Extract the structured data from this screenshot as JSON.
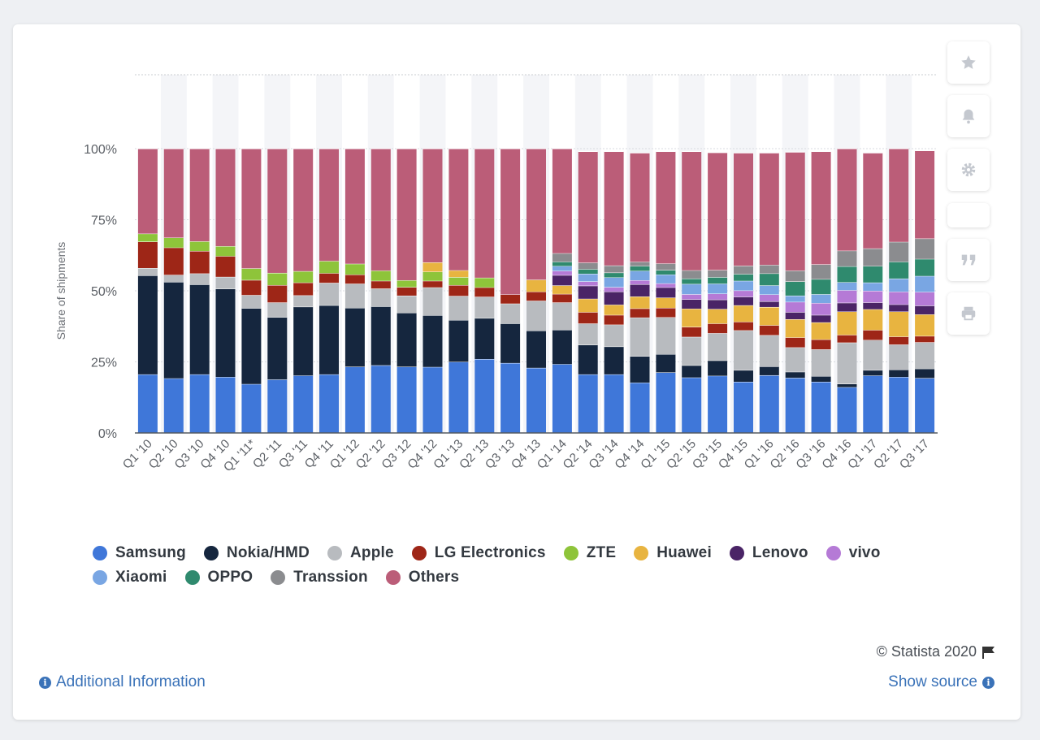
{
  "chart_data": {
    "type": "bar",
    "stacked": true,
    "title": "",
    "xlabel": "",
    "ylabel": "Share of shipments",
    "ylim": [
      0,
      100
    ],
    "yticks": [
      "0%",
      "25%",
      "50%",
      "75%",
      "100%"
    ],
    "grid": true,
    "legend_position": "bottom",
    "categories": [
      "Q1 '10",
      "Q2 '10",
      "Q3 '10",
      "Q4 '10",
      "Q1 '11*",
      "Q2 '11",
      "Q3 '11",
      "Q4 '11",
      "Q1 '12",
      "Q2 '12",
      "Q3 '12",
      "Q4 '12",
      "Q1 '13",
      "Q2 '13",
      "Q3 '13",
      "Q4 '13",
      "Q1 '14",
      "Q2 '14",
      "Q3 '14",
      "Q4 '14",
      "Q1 '15",
      "Q2 '15",
      "Q3 '15",
      "Q4 '15",
      "Q1 '16",
      "Q2 '16",
      "Q3 '16",
      "Q4 '16",
      "Q1 '17",
      "Q2 '17",
      "Q3 '17"
    ],
    "series": [
      {
        "name": "Samsung",
        "color": "#3f77d9",
        "values": [
          20.6,
          19.2,
          20.6,
          19.7,
          17.2,
          18.8,
          20.2,
          20.6,
          23.3,
          23.8,
          23.3,
          23.2,
          25.0,
          26.0,
          24.6,
          22.9,
          24.2,
          20.6,
          20.6,
          17.7,
          21.3,
          19.5,
          20.1,
          18.0,
          20.3,
          19.4,
          18.0,
          16.1,
          20.2,
          19.7,
          19.3
        ]
      },
      {
        "name": "Nokia/HMD",
        "color": "#15263e",
        "values": [
          34.8,
          33.9,
          31.6,
          31.0,
          26.7,
          21.9,
          24.2,
          24.3,
          20.7,
          20.7,
          19.0,
          18.2,
          14.7,
          14.4,
          13.9,
          13.1,
          12.1,
          10.4,
          9.8,
          9.3,
          6.4,
          4.3,
          5.4,
          4.1,
          3.1,
          2.1,
          2.0,
          1.2,
          1.9,
          2.6,
          3.3
        ]
      },
      {
        "name": "Apple",
        "color": "#b8bbbf",
        "values": [
          2.6,
          2.5,
          3.9,
          4.2,
          4.6,
          5.2,
          4.0,
          7.9,
          8.5,
          6.3,
          6.0,
          9.8,
          8.5,
          7.5,
          7.0,
          10.5,
          9.6,
          7.5,
          7.7,
          13.6,
          13.0,
          10.0,
          9.6,
          14.0,
          11.0,
          8.6,
          9.4,
          14.5,
          10.6,
          8.8,
          9.3
        ]
      },
      {
        "name": "LG Electronics",
        "color": "#9e2617",
        "values": [
          9.3,
          9.6,
          7.9,
          7.3,
          5.3,
          6.1,
          4.5,
          3.4,
          3.2,
          2.7,
          3.0,
          2.3,
          3.8,
          3.3,
          3.2,
          3.2,
          3.0,
          4.0,
          3.4,
          3.2,
          3.3,
          3.5,
          3.4,
          3.0,
          3.5,
          3.5,
          3.5,
          2.7,
          3.5,
          2.8,
          2.2
        ]
      },
      {
        "name": "ZTE",
        "color": "#8ec43a",
        "values": [
          2.8,
          3.5,
          3.4,
          3.5,
          4.1,
          4.3,
          4.0,
          4.3,
          3.8,
          3.6,
          2.4,
          3.2,
          2.8,
          3.4,
          0,
          0,
          0,
          0,
          0,
          0,
          0,
          0,
          0,
          0,
          0,
          0,
          0,
          0,
          0,
          0,
          0
        ]
      },
      {
        "name": "Huawei",
        "color": "#e8b440",
        "values": [
          0,
          0,
          0,
          0,
          0,
          0,
          0,
          0,
          0,
          0,
          0,
          3.3,
          2.4,
          0,
          0,
          4.2,
          3.0,
          4.7,
          3.6,
          4.2,
          3.6,
          6.4,
          5.1,
          5.8,
          6.4,
          6.4,
          6.0,
          8.2,
          7.3,
          8.8,
          7.6
        ]
      },
      {
        "name": "Lenovo",
        "color": "#4a2466",
        "values": [
          0,
          0,
          0,
          0,
          0,
          0,
          0,
          0,
          0,
          0,
          0,
          0,
          0,
          0,
          0,
          0,
          3.6,
          4.6,
          4.6,
          4.3,
          3.6,
          3.3,
          3.3,
          3.0,
          2.0,
          2.5,
          2.6,
          3.1,
          2.4,
          2.5,
          3.1
        ]
      },
      {
        "name": "vivo",
        "color": "#b57ad6",
        "values": [
          0,
          0,
          0,
          0,
          0,
          0,
          0,
          0,
          0,
          0,
          0,
          0,
          0,
          0,
          0,
          0,
          1.5,
          1.5,
          1.6,
          1.4,
          1.4,
          1.8,
          2.1,
          2.2,
          2.4,
          3.6,
          4.2,
          4.4,
          4.1,
          4.5,
          4.8
        ]
      },
      {
        "name": "Xiaomi",
        "color": "#79a6e3",
        "values": [
          0,
          0,
          0,
          0,
          0,
          0,
          0,
          0,
          0,
          0,
          0,
          0,
          0,
          0,
          0,
          0,
          1.7,
          2.7,
          3.4,
          3.3,
          3.1,
          3.6,
          3.5,
          3.4,
          3.2,
          2.2,
          3.1,
          2.8,
          2.9,
          4.6,
          5.6
        ]
      },
      {
        "name": "OPPO",
        "color": "#2f8a6e",
        "values": [
          0,
          0,
          0,
          0,
          0,
          0,
          0,
          0,
          0,
          0,
          0,
          0,
          0,
          0,
          0,
          0,
          1.5,
          1.6,
          1.7,
          1.7,
          1.6,
          1.9,
          2.3,
          2.4,
          4.2,
          5.0,
          5.3,
          5.6,
          5.8,
          5.9,
          6.0
        ]
      },
      {
        "name": "Transsion",
        "color": "#8b8c8f",
        "values": [
          0,
          0,
          0,
          0,
          0,
          0,
          0,
          0,
          0,
          0,
          0,
          0,
          0,
          0,
          0,
          0,
          3.0,
          2.3,
          2.5,
          1.5,
          2.3,
          2.9,
          2.5,
          2.9,
          3.0,
          3.8,
          5.2,
          5.5,
          6.2,
          7.0,
          7.2
        ]
      },
      {
        "name": "Others",
        "color": "#bb5d78",
        "values": [
          29.9,
          31.3,
          32.6,
          34.3,
          42.1,
          43.7,
          43.1,
          39.5,
          40.5,
          42.9,
          46.3,
          40.0,
          42.8,
          45.4,
          51.3,
          46.1,
          36.8,
          39.1,
          40.1,
          38.3,
          39.4,
          41.8,
          41.3,
          39.7,
          39.4,
          41.7,
          39.7,
          35.9,
          33.6,
          32.8,
          30.9
        ]
      }
    ]
  },
  "ui": {
    "credit": "© Statista 2020",
    "additional_info": "Additional Information",
    "show_source": "Show source",
    "icons": [
      "star-icon",
      "bell-icon",
      "gear-icon",
      "quote-icon",
      "print-icon",
      "flag-icon",
      "info-icon"
    ]
  }
}
